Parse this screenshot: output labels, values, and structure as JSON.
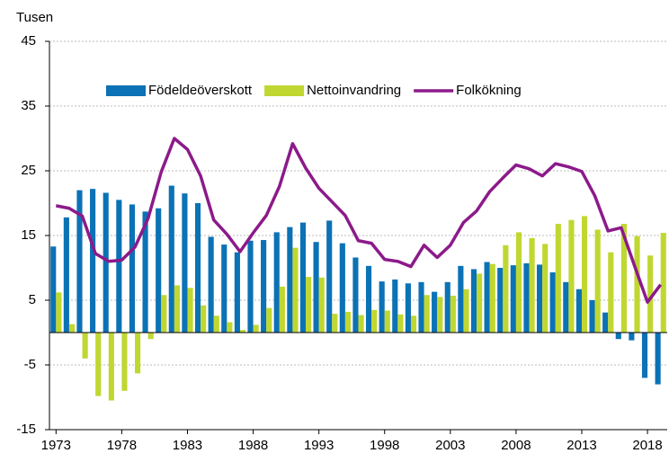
{
  "chart_data": {
    "type": "bar-line",
    "y_label": "Tusen",
    "categories": [
      "1973",
      null,
      null,
      null,
      null,
      "1978",
      null,
      null,
      null,
      null,
      "1983",
      null,
      null,
      null,
      null,
      "1988",
      null,
      null,
      null,
      null,
      "1993",
      null,
      null,
      null,
      null,
      "1998",
      null,
      null,
      null,
      null,
      "2003",
      null,
      null,
      null,
      null,
      "2008",
      null,
      null,
      null,
      null,
      "2013",
      null,
      null,
      null,
      null,
      "2018",
      null
    ],
    "series": [
      {
        "name": "Födeldeöverskott",
        "type": "bar",
        "color": "#0b72b5",
        "values": [
          13.3,
          17.8,
          22.0,
          22.2,
          21.6,
          20.5,
          19.8,
          18.7,
          19.2,
          22.7,
          21.5,
          20.0,
          14.8,
          13.6,
          12.4,
          14.2,
          14.3,
          15.5,
          16.3,
          17.0,
          14.0,
          17.3,
          13.8,
          11.6,
          10.3,
          7.9,
          8.2,
          7.6,
          7.8,
          6.3,
          7.8,
          10.3,
          9.8,
          10.9,
          10.0,
          10.4,
          10.7,
          10.5,
          9.3,
          7.8,
          6.7,
          5.0,
          3.1,
          -1.0,
          -1.2,
          -7.0,
          -8.0
        ]
      },
      {
        "name": "Nettoinvandring",
        "type": "bar",
        "color": "#c0d731",
        "values": [
          6.2,
          1.3,
          -4.0,
          -9.8,
          -10.5,
          -9.0,
          -6.3,
          -1.0,
          5.8,
          7.3,
          6.9,
          4.2,
          2.6,
          1.6,
          0.4,
          1.2,
          3.8,
          7.1,
          13.1,
          8.6,
          8.5,
          2.9,
          3.2,
          2.7,
          3.5,
          3.4,
          2.8,
          2.6,
          5.8,
          5.5,
          5.7,
          6.7,
          9.1,
          10.6,
          13.5,
          15.5,
          14.6,
          13.7,
          16.8,
          17.4,
          18.0,
          15.9,
          12.4,
          16.8,
          14.9,
          11.9,
          15.4
        ]
      },
      {
        "name": "Folkökning",
        "type": "line",
        "color": "#8c1a8a",
        "values": [
          19.6,
          19.2,
          18.0,
          12.2,
          11.0,
          11.2,
          13.2,
          17.6,
          24.8,
          30.0,
          28.3,
          24.2,
          17.4,
          15.2,
          12.5,
          15.4,
          18.1,
          22.6,
          29.2,
          25.4,
          22.3,
          20.2,
          18.1,
          14.2,
          13.8,
          11.3,
          11.0,
          10.2,
          13.5,
          11.6,
          13.5,
          17.0,
          18.8,
          21.8,
          23.9,
          25.9,
          25.3,
          24.2,
          26.1,
          25.6,
          24.9,
          21.1,
          15.7,
          16.2,
          10.4,
          4.7,
          7.4
        ]
      }
    ],
    "ylim": [
      -15,
      45
    ],
    "yticks": [
      -15,
      -5,
      5,
      15,
      25,
      35,
      45
    ],
    "grid": true,
    "legend": "top"
  }
}
